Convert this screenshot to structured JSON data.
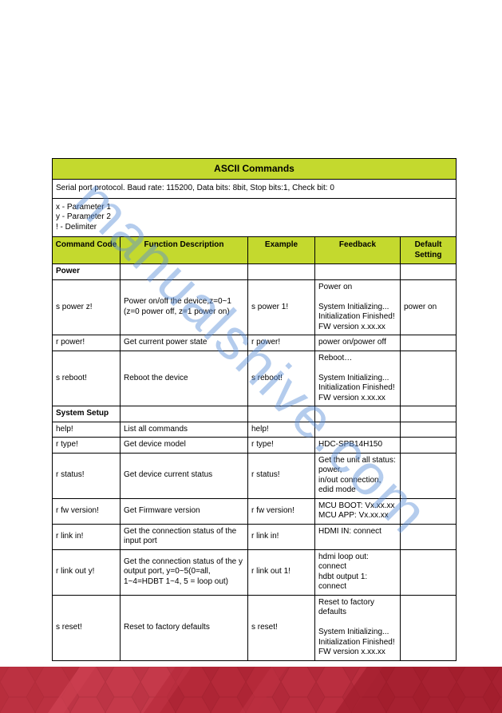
{
  "watermark_text": "manualshive.com",
  "table": {
    "title": "ASCII Commands",
    "protocol_line": "Serial port protocol.  Baud rate: 115200,    Data bits: 8bit,  Stop bits:1,   Check bit: 0",
    "params_line": "x - Parameter 1\ny - Parameter 2\n! - Delimiter",
    "headers": {
      "c1": "Command Code",
      "c2": "Function Description",
      "c3": "Example",
      "c4": "Feedback",
      "c5": "Default Setting"
    },
    "sections": [
      {
        "name": "Power",
        "rows": [
          {
            "cmd": "s power z!",
            "func": "Power on/off the device,z=0~1\n(z=0 power off, z=1 power on)",
            "ex": "s power 1!",
            "fb": "Power on\n\nSystem Initializing...\nInitialization Finished!\nFW version x.xx.xx",
            "def": "power on"
          },
          {
            "cmd": "r power!",
            "func": "Get current power state",
            "ex": "r power!",
            "fb": "power on/power off",
            "def": ""
          },
          {
            "cmd": "s reboot!",
            "func": "Reboot the device",
            "ex": "s reboot!",
            "fb": "Reboot…\n\nSystem Initializing...\nInitialization Finished!\nFW version x.xx.xx",
            "def": ""
          }
        ]
      },
      {
        "name": "System Setup",
        "rows": [
          {
            "cmd": "help!",
            "func": "List all commands",
            "ex": "help!",
            "fb": "",
            "def": ""
          },
          {
            "cmd": "r type!",
            "func": "Get device model",
            "ex": "r type!",
            "fb": "HDC-SPB14H150",
            "def": ""
          },
          {
            "cmd": "r status!",
            "func": "Get device current status",
            "ex": "r status!",
            "fb": "Get the unit all status:\npower,\nin/out connection,\nedid mode",
            "def": ""
          },
          {
            "cmd": "r fw version!",
            "func": "Get Firmware version",
            "ex": "r fw version!",
            "fb": "MCU BOOT: Vx.xx.xx\nMCU APP: Vx.xx.xx",
            "def": ""
          },
          {
            "cmd": "r link in!",
            "func": "Get the connection status of the input port",
            "ex": "r link in!",
            "fb": "HDMI IN: connect",
            "def": ""
          },
          {
            "cmd": "r link out y!",
            "func": "Get the connection status of the y output port, y=0~5(0=all, 1~4=HDBT 1~4, 5 = loop out)",
            "ex": "r link out 1!",
            "fb": "hdmi loop out: connect\nhdbt output 1: connect",
            "def": ""
          },
          {
            "cmd": "s reset!",
            "func": "Reset to factory defaults",
            "ex": "s reset!",
            "fb": "Reset to factory defaults\n\nSystem Initializing...\nInitialization Finished!\nFW version x.xx.xx",
            "def": ""
          }
        ]
      }
    ]
  },
  "style": {
    "header_bg": "#c4d92e",
    "border_color": "#000000",
    "watermark_color": "#5b8fd9",
    "footer_colors": [
      "#a31e2e",
      "#c13445",
      "#d84a5c",
      "#8c1823",
      "#b52a3a"
    ]
  }
}
